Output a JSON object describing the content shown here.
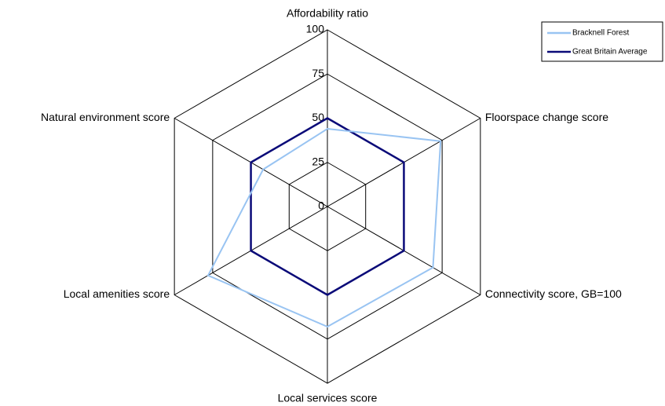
{
  "chart_data": {
    "type": "radar",
    "categories": [
      "Affordability ratio",
      "Floorspace change score",
      "Connectivity score, GB=100",
      "Local services score",
      "Local amenities score",
      "Natural environment score"
    ],
    "series": [
      {
        "name": "Bracknell Forest",
        "color": "#99c4f2",
        "values": [
          44,
          74,
          69,
          68,
          78,
          42
        ]
      },
      {
        "name": "Great Britain Average",
        "color": "#0a0a78",
        "values": [
          50,
          50,
          50,
          50,
          50,
          50
        ]
      }
    ],
    "ylim": [
      0,
      100
    ],
    "yticks": [
      0,
      25,
      50,
      75,
      100
    ],
    "grid": true,
    "legend": "top-right"
  }
}
